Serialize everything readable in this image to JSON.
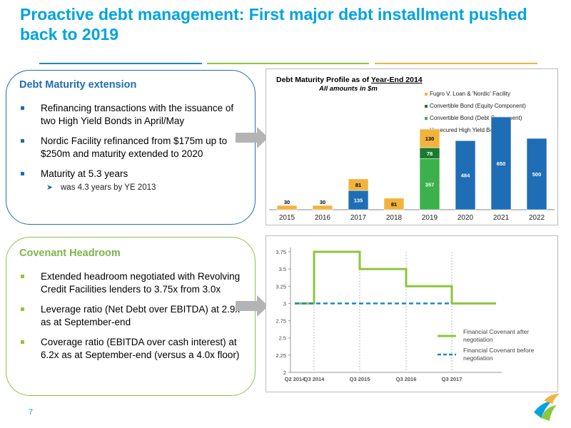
{
  "slide": {
    "title": "Proactive debt management: First major debt installment pushed back to 2019",
    "page_number": "7"
  },
  "colors": {
    "title": "#00a3e0",
    "blue": "#1f6db5",
    "green": "#8cc63f",
    "orange": "#f2b33d",
    "arrow": "#b4b4b4"
  },
  "debt_box": {
    "heading": "Debt Maturity extension",
    "bullets": [
      "Refinancing transactions with the issuance of two High Yield Bonds in April/May",
      "Nordic Facility refinanced from $175m up to $250m and maturity extended to 2020",
      "Maturity at 5.3 years"
    ],
    "sub_bullet": "was 4.3 years by YE 2013"
  },
  "covenant_box": {
    "heading": "Covenant Headroom",
    "bullets": [
      "Extended headroom negotiated with Revolving Credit Facilities lenders to 3.75x from 3.0x",
      "Leverage ratio (Net Debt over EBITDA) at 2.9x as at September-end",
      "Coverage ratio (EBITDA over cash interest) at 6.2x as at September-end (versus a 4.0x floor)"
    ]
  },
  "chart_data": [
    {
      "type": "bar",
      "title_prefix": "Debt Maturity Profile as of ",
      "title_underlined": "Year-End 2014",
      "subtitle": "All amounts in $m",
      "categories": [
        "2015",
        "2016",
        "2017",
        "2018",
        "2019",
        "2020",
        "2021",
        "2022"
      ],
      "series": [
        {
          "name": "Unsecured High Yield Bond",
          "color": "#1f6db5",
          "values": [
            0,
            0,
            135,
            0,
            0,
            484,
            650,
            500
          ]
        },
        {
          "name": "Convertible Bond (Debt Component)",
          "color": "#3cb04a",
          "values": [
            0,
            0,
            0,
            0,
            357,
            0,
            0,
            0
          ]
        },
        {
          "name": "Convertible Bond (Equity Component)",
          "color": "#1b7a2e",
          "values": [
            0,
            0,
            0,
            0,
            78,
            0,
            0,
            0
          ]
        },
        {
          "name": "Fugro V. Loan & 'Nordic' Facility",
          "color": "#f2b33d",
          "values": [
            30,
            30,
            81,
            81,
            130,
            0,
            0,
            0
          ]
        }
      ],
      "legend_order": [
        "Fugro V. Loan & 'Nordic' Facility",
        "Convertible Bond (Equity Component)",
        "Convertible Bond (Debt Component)",
        "Unsecured High Yield Bond"
      ],
      "legend_position": "top-right",
      "ylim": [
        0,
        700
      ]
    },
    {
      "type": "line",
      "x_ticks": [
        "Q2 2014",
        "Q3 2014",
        "Q3 2015",
        "Q3 2016",
        "Q3 2017"
      ],
      "y_ticks": [
        "2",
        "2.25",
        "2.5",
        "2.75",
        "3",
        "3.25",
        "3.5",
        "3.75"
      ],
      "ylim": [
        2,
        3.75
      ],
      "series": [
        {
          "name": "Financial Covenant after negotiation",
          "color": "#8cc63f",
          "style": "solid",
          "points": [
            [
              "Q2 2014",
              3.0
            ],
            [
              "Q3 2014",
              3.0
            ],
            [
              "Q3 2014",
              3.75
            ],
            [
              "Q3 2015",
              3.75
            ],
            [
              "Q3 2015",
              3.5
            ],
            [
              "Q3 2016",
              3.5
            ],
            [
              "Q3 2016",
              3.25
            ],
            [
              "Q3 2017",
              3.25
            ],
            [
              "Q3 2017",
              3.0
            ],
            [
              "end",
              3.0
            ]
          ]
        },
        {
          "name": "Financial Covenant before negotiation",
          "color": "#1f86c8",
          "style": "dashed",
          "points": [
            [
              "Q2 2014",
              3.0
            ],
            [
              "Q3 2017",
              3.0
            ]
          ]
        }
      ],
      "legend_position": "bottom-right"
    }
  ]
}
